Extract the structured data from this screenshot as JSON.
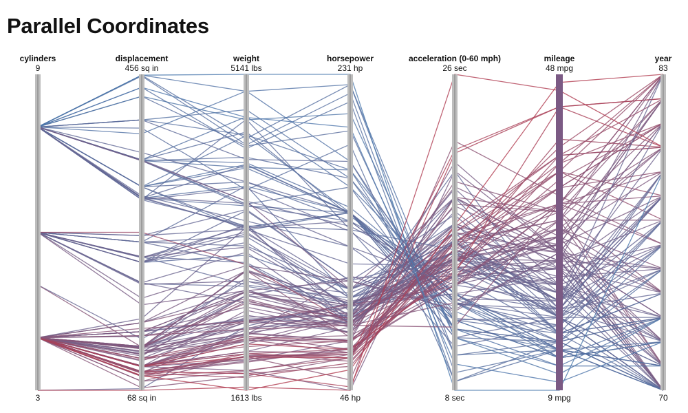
{
  "page": {
    "title": "Parallel Coordinates"
  },
  "colors": {
    "low": "#b53a4e",
    "high": "#4a78ad",
    "axis": "#bdbdbd",
    "axis_core": "#7a7a7a",
    "mileage_axis": "#7b5a84"
  },
  "chart_data": {
    "type": "parallel-coordinates",
    "title": "Parallel Coordinates",
    "color_by": "mileage",
    "axes": [
      {
        "key": "cylinders",
        "label": "cylinders",
        "min": 3,
        "max": 9,
        "min_label": "3",
        "max_label": "9"
      },
      {
        "key": "displacement",
        "label": "displacement",
        "min": 68,
        "max": 456,
        "min_label": "68 sq in",
        "max_label": "456 sq in"
      },
      {
        "key": "weight",
        "label": "weight",
        "min": 1613,
        "max": 5141,
        "min_label": "1613 lbs",
        "max_label": "5141 lbs"
      },
      {
        "key": "horsepower",
        "label": "horsepower",
        "min": 46,
        "max": 231,
        "min_label": "46 hp",
        "max_label": "231 hp"
      },
      {
        "key": "acceleration",
        "label": "acceleration (0-60 mph)",
        "min": 8,
        "max": 26,
        "min_label": "8 sec",
        "max_label": "26 sec"
      },
      {
        "key": "mileage",
        "label": "mileage",
        "min": 9,
        "max": 48,
        "min_label": "9 mpg",
        "max_label": "48 mpg"
      },
      {
        "key": "year",
        "label": "year",
        "min": 70,
        "max": 83,
        "min_label": "70",
        "max_label": "83"
      }
    ],
    "records": [
      [
        8,
        307,
        3504,
        130,
        12,
        18,
        70
      ],
      [
        8,
        350,
        3693,
        165,
        11.5,
        15,
        70
      ],
      [
        8,
        318,
        3436,
        150,
        11,
        18,
        70
      ],
      [
        8,
        304,
        3433,
        150,
        12,
        16,
        70
      ],
      [
        8,
        302,
        3449,
        140,
        10.5,
        17,
        70
      ],
      [
        8,
        429,
        4341,
        198,
        10,
        15,
        70
      ],
      [
        8,
        454,
        4354,
        220,
        9,
        14,
        70
      ],
      [
        8,
        440,
        4312,
        215,
        8.5,
        14,
        70
      ],
      [
        8,
        455,
        4425,
        225,
        10,
        14,
        70
      ],
      [
        8,
        390,
        3850,
        190,
        8.5,
        15,
        70
      ],
      [
        4,
        113,
        2372,
        95,
        15,
        24,
        70
      ],
      [
        6,
        198,
        2833,
        95,
        15.5,
        22,
        70
      ],
      [
        6,
        199,
        2774,
        97,
        15.5,
        18,
        70
      ],
      [
        6,
        200,
        2587,
        85,
        16,
        21,
        70
      ],
      [
        4,
        97,
        2130,
        88,
        14.5,
        27,
        70
      ],
      [
        4,
        97,
        1835,
        46,
        20.5,
        26,
        70
      ],
      [
        4,
        110,
        2672,
        87,
        17.5,
        25,
        70
      ],
      [
        4,
        107,
        2430,
        90,
        14.5,
        24,
        70
      ],
      [
        4,
        104,
        2375,
        95,
        17.5,
        25,
        70
      ],
      [
        4,
        121,
        2234,
        113,
        12.5,
        26,
        70
      ],
      [
        8,
        400,
        4464,
        175,
        11.5,
        14,
        71
      ],
      [
        8,
        351,
        4154,
        153,
        13.5,
        14,
        71
      ],
      [
        8,
        318,
        4096,
        150,
        13,
        14,
        71
      ],
      [
        8,
        383,
        4955,
        180,
        11.5,
        12,
        71
      ],
      [
        4,
        140,
        2408,
        90,
        19.5,
        22,
        71
      ],
      [
        4,
        98,
        2164,
        76,
        14.5,
        28,
        71
      ],
      [
        4,
        71,
        1773,
        65,
        19,
        31,
        71
      ],
      [
        4,
        113,
        2228,
        95,
        14,
        25,
        71
      ],
      [
        6,
        250,
        3329,
        100,
        15.5,
        18,
        71
      ],
      [
        6,
        232,
        2789,
        100,
        15,
        18,
        71
      ],
      [
        4,
        122,
        2310,
        86,
        16,
        23,
        71
      ],
      [
        4,
        79,
        1825,
        67,
        16.5,
        30,
        71
      ],
      [
        8,
        400,
        4746,
        170,
        12,
        13,
        72
      ],
      [
        8,
        351,
        4668,
        165,
        13.5,
        13,
        72
      ],
      [
        8,
        318,
        4135,
        150,
        12,
        13,
        72
      ],
      [
        8,
        304,
        3892,
        150,
        12.5,
        14,
        72
      ],
      [
        4,
        122,
        2408,
        86,
        15.5,
        21,
        72
      ],
      [
        4,
        97,
        2288,
        92,
        17,
        24,
        72
      ],
      [
        4,
        140,
        2395,
        80,
        16,
        22,
        72
      ],
      [
        3,
        70,
        2330,
        97,
        13.5,
        19,
        72
      ],
      [
        4,
        116,
        2158,
        90,
        15.5,
        27,
        72
      ],
      [
        4,
        97,
        2506,
        80,
        19,
        26,
        72
      ],
      [
        8,
        455,
        4951,
        225,
        11,
        12,
        73
      ],
      [
        8,
        429,
        4633,
        208,
        11,
        11,
        73
      ],
      [
        8,
        350,
        4100,
        175,
        13,
        13,
        73
      ],
      [
        8,
        304,
        3672,
        150,
        11.5,
        15,
        73
      ],
      [
        8,
        318,
        3399,
        150,
        11,
        15,
        73
      ],
      [
        6,
        225,
        3121,
        105,
        16.5,
        16,
        73
      ],
      [
        6,
        250,
        3021,
        88,
        16.5,
        18,
        73
      ],
      [
        4,
        97,
        2254,
        88,
        18.5,
        26,
        73
      ],
      [
        4,
        120,
        2868,
        97,
        15,
        21,
        73
      ],
      [
        4,
        98,
        2045,
        83,
        16.5,
        26,
        73
      ],
      [
        8,
        350,
        3672,
        145,
        14.5,
        16,
        73
      ],
      [
        4,
        121,
        2674,
        112,
        14.5,
        22,
        73
      ],
      [
        4,
        116,
        2246,
        75,
        14,
        28,
        74
      ],
      [
        4,
        90,
        1937,
        70,
        14,
        29,
        74
      ],
      [
        6,
        258,
        3632,
        110,
        18,
        19,
        74
      ],
      [
        6,
        250,
        3897,
        100,
        17,
        16,
        74
      ],
      [
        8,
        302,
        4638,
        140,
        16,
        16,
        74
      ],
      [
        4,
        79,
        2000,
        67,
        16,
        31,
        74
      ],
      [
        4,
        140,
        2542,
        83,
        17,
        26,
        74
      ],
      [
        4,
        122,
        2452,
        80,
        19,
        24,
        74
      ],
      [
        8,
        318,
        4457,
        150,
        13.5,
        14,
        75
      ],
      [
        8,
        351,
        4498,
        148,
        13.5,
        15,
        75
      ],
      [
        6,
        225,
        3264,
        95,
        19,
        19,
        75
      ],
      [
        6,
        232,
        3039,
        90,
        20.5,
        18,
        75
      ],
      [
        4,
        90,
        2254,
        75,
        15.5,
        29,
        75
      ],
      [
        4,
        115,
        2671,
        95,
        13.5,
        23,
        75
      ],
      [
        4,
        97,
        1950,
        75,
        21,
        26,
        75
      ],
      [
        4,
        120,
        2957,
        97,
        15,
        25,
        75
      ],
      [
        8,
        304,
        4129,
        150,
        13,
        17,
        76
      ],
      [
        8,
        350,
        4215,
        170,
        13,
        15,
        76
      ],
      [
        6,
        231,
        3445,
        105,
        16.5,
        20,
        76
      ],
      [
        6,
        250,
        3225,
        105,
        17.5,
        18,
        76
      ],
      [
        4,
        85,
        1990,
        52,
        22.2,
        33,
        76
      ],
      [
        4,
        98,
        2219,
        70,
        16.5,
        32,
        76
      ],
      [
        4,
        121,
        2945,
        98,
        14.5,
        24,
        76
      ],
      [
        4,
        156,
        3434,
        92,
        14.9,
        22,
        76
      ],
      [
        8,
        400,
        4190,
        180,
        12.1,
        17,
        77
      ],
      [
        8,
        318,
        3940,
        145,
        13.2,
        16,
        77
      ],
      [
        6,
        231,
        3380,
        100,
        16.4,
        20,
        77
      ],
      [
        6,
        225,
        3620,
        110,
        15.8,
        18,
        77
      ],
      [
        4,
        91,
        1990,
        68,
        17,
        36,
        77
      ],
      [
        4,
        97,
        2190,
        78,
        14.2,
        30,
        77
      ],
      [
        4,
        134,
        2711,
        96,
        15.5,
        25,
        77
      ],
      [
        5,
        131,
        2830,
        103,
        15.9,
        20,
        78
      ],
      [
        8,
        302,
        3870,
        139,
        12.9,
        19,
        78
      ],
      [
        8,
        305,
        3425,
        145,
        13.2,
        20,
        78
      ],
      [
        6,
        200,
        3155,
        85,
        18.2,
        21,
        78
      ],
      [
        6,
        258,
        3410,
        120,
        15.1,
        19,
        78
      ],
      [
        4,
        91,
        1800,
        60,
        16.4,
        36,
        78
      ],
      [
        4,
        98,
        2045,
        68,
        16.8,
        32,
        78
      ],
      [
        4,
        119,
        2300,
        97,
        14.7,
        27,
        78
      ],
      [
        4,
        151,
        2735,
        88,
        15.4,
        24,
        78
      ],
      [
        8,
        360,
        3940,
        150,
        13,
        18,
        79
      ],
      [
        8,
        351,
        3725,
        142,
        14.3,
        19,
        79
      ],
      [
        6,
        225,
        3360,
        105,
        15.8,
        20,
        79
      ],
      [
        4,
        89,
        1925,
        71,
        14,
        32,
        79
      ],
      [
        4,
        98,
        2020,
        63,
        15.8,
        34,
        79
      ],
      [
        4,
        140,
        2720,
        88,
        15.4,
        28,
        79
      ],
      [
        4,
        85,
        1835,
        65,
        17.3,
        38,
        80
      ],
      [
        4,
        91,
        1800,
        48,
        21.5,
        44,
        80
      ],
      [
        4,
        119,
        2720,
        90,
        15.7,
        28,
        80
      ],
      [
        6,
        232,
        3210,
        95,
        17.4,
        22,
        80
      ],
      [
        4,
        98,
        2020,
        70,
        14.8,
        38,
        80
      ],
      [
        5,
        121,
        2950,
        77,
        19.9,
        31,
        80
      ],
      [
        4,
        86,
        2020,
        65,
        15.2,
        40,
        80
      ],
      [
        4,
        112,
        2395,
        85,
        14.5,
        29,
        80
      ],
      [
        6,
        173,
        2725,
        110,
        12.6,
        26,
        81
      ],
      [
        4,
        107,
        2210,
        75,
        14.4,
        37,
        81
      ],
      [
        4,
        91,
        1965,
        67,
        15,
        35,
        81
      ],
      [
        4,
        151,
        2635,
        84,
        16.4,
        30,
        81
      ],
      [
        6,
        225,
        3465,
        85,
        16.6,
        20,
        81
      ],
      [
        4,
        98,
        2180,
        68,
        16.5,
        34,
        81
      ],
      [
        8,
        350,
        3725,
        105,
        19,
        26,
        81
      ],
      [
        4,
        105,
        2190,
        74,
        15.3,
        34,
        81
      ],
      [
        4,
        97,
        2130,
        70,
        14.7,
        44,
        82
      ],
      [
        4,
        135,
        2295,
        84,
        11.6,
        32,
        82
      ],
      [
        4,
        151,
        2950,
        90,
        17.3,
        27,
        82
      ],
      [
        6,
        262,
        3015,
        85,
        17,
        38,
        82
      ],
      [
        4,
        140,
        2720,
        86,
        15.6,
        27,
        82
      ],
      [
        4,
        97,
        1985,
        65,
        21.7,
        44,
        82
      ],
      [
        4,
        120,
        2625,
        79,
        18.6,
        31,
        82
      ],
      [
        4,
        112,
        2605,
        88,
        19.6,
        28,
        82
      ],
      [
        4,
        89,
        1755,
        62,
        16.1,
        39,
        83
      ],
      [
        4,
        91,
        1985,
        67,
        16.4,
        37,
        83
      ],
      [
        4,
        107,
        2100,
        75,
        16,
        36,
        83
      ],
      [
        4,
        122,
        2585,
        88,
        15.3,
        32,
        83
      ],
      [
        4,
        135,
        2370,
        84,
        13,
        30,
        83
      ],
      [
        6,
        181,
        3005,
        110,
        12.8,
        25,
        83
      ],
      [
        8,
        305,
        3700,
        130,
        14,
        20,
        83
      ],
      [
        4,
        144,
        2380,
        96,
        13.9,
        32,
        83
      ],
      [
        4,
        86,
        1613,
        58,
        17.4,
        47,
        83
      ],
      [
        8,
        455,
        5141,
        231,
        8,
        9,
        79
      ],
      [
        3,
        68,
        1649,
        46,
        26,
        46,
        80
      ],
      [
        8,
        440,
        4660,
        200,
        9.5,
        10,
        72
      ]
    ]
  }
}
